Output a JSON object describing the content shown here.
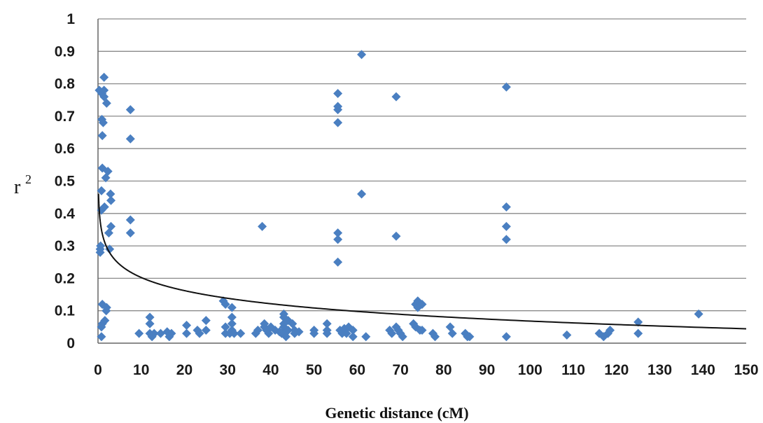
{
  "chart_data": {
    "type": "scatter",
    "xlabel": "Genetic distance (cM)",
    "ylabel": "r",
    "ylabel_sup": "2",
    "xlim": [
      0,
      150
    ],
    "ylim": [
      0,
      1
    ],
    "x_ticks": [
      "0",
      "10",
      "20",
      "30",
      "40",
      "50",
      "60",
      "70",
      "80",
      "90",
      "100",
      "110",
      "120",
      "130",
      "140",
      "150"
    ],
    "y_ticks": [
      "0",
      "0.1",
      "0.2",
      "0.3",
      "0.4",
      "0.5",
      "0.6",
      "0.7",
      "0.8",
      "0.9",
      "1"
    ],
    "grid": "horizontal",
    "marker_color": "#4a7fc1",
    "curve_color": "#111111",
    "points": [
      [
        0.3,
        0.78
      ],
      [
        0.5,
        0.29
      ],
      [
        0.5,
        0.28
      ],
      [
        0.6,
        0.3
      ],
      [
        0.8,
        0.41
      ],
      [
        0.8,
        0.47
      ],
      [
        0.8,
        0.05
      ],
      [
        0.8,
        0.02
      ],
      [
        0.9,
        0.77
      ],
      [
        0.9,
        0.69
      ],
      [
        1.0,
        0.64
      ],
      [
        1.0,
        0.54
      ],
      [
        1.0,
        0.12
      ],
      [
        1.0,
        0.06
      ],
      [
        1.2,
        0.68
      ],
      [
        1.4,
        0.82
      ],
      [
        1.4,
        0.78
      ],
      [
        1.4,
        0.76
      ],
      [
        1.5,
        0.42
      ],
      [
        1.6,
        0.07
      ],
      [
        1.8,
        0.51
      ],
      [
        1.9,
        0.1
      ],
      [
        2.0,
        0.74
      ],
      [
        2.0,
        0.11
      ],
      [
        2.3,
        0.53
      ],
      [
        2.5,
        0.34
      ],
      [
        2.7,
        0.29
      ],
      [
        2.9,
        0.46
      ],
      [
        3.0,
        0.44
      ],
      [
        3.0,
        0.36
      ],
      [
        7.5,
        0.72
      ],
      [
        7.5,
        0.63
      ],
      [
        7.5,
        0.38
      ],
      [
        7.5,
        0.34
      ],
      [
        9.5,
        0.03
      ],
      [
        12.0,
        0.08
      ],
      [
        12.0,
        0.06
      ],
      [
        12.0,
        0.03
      ],
      [
        12.5,
        0.02
      ],
      [
        13.0,
        0.03
      ],
      [
        14.5,
        0.03
      ],
      [
        16.0,
        0.035
      ],
      [
        16.5,
        0.02
      ],
      [
        17.0,
        0.03
      ],
      [
        20.5,
        0.055
      ],
      [
        20.5,
        0.03
      ],
      [
        23.0,
        0.04
      ],
      [
        23.5,
        0.03
      ],
      [
        25.0,
        0.07
      ],
      [
        25.0,
        0.04
      ],
      [
        29.0,
        0.13
      ],
      [
        29.5,
        0.12
      ],
      [
        29.5,
        0.05
      ],
      [
        29.5,
        0.03
      ],
      [
        30.5,
        0.03
      ],
      [
        31.0,
        0.11
      ],
      [
        31.0,
        0.08
      ],
      [
        31.0,
        0.06
      ],
      [
        31.0,
        0.04
      ],
      [
        31.5,
        0.03
      ],
      [
        33.0,
        0.03
      ],
      [
        36.5,
        0.03
      ],
      [
        37.0,
        0.04
      ],
      [
        38.0,
        0.36
      ],
      [
        38.5,
        0.06
      ],
      [
        38.5,
        0.05
      ],
      [
        39.0,
        0.04
      ],
      [
        39.5,
        0.03
      ],
      [
        40.0,
        0.05
      ],
      [
        41.0,
        0.04
      ],
      [
        42.0,
        0.035
      ],
      [
        42.5,
        0.03
      ],
      [
        43.0,
        0.09
      ],
      [
        43.0,
        0.08
      ],
      [
        43.0,
        0.06
      ],
      [
        43.0,
        0.05
      ],
      [
        43.0,
        0.03
      ],
      [
        43.5,
        0.02
      ],
      [
        44.0,
        0.07
      ],
      [
        44.0,
        0.04
      ],
      [
        45.0,
        0.06
      ],
      [
        45.5,
        0.04
      ],
      [
        45.5,
        0.03
      ],
      [
        46.5,
        0.035
      ],
      [
        50.0,
        0.04
      ],
      [
        50.0,
        0.03
      ],
      [
        53.0,
        0.06
      ],
      [
        53.0,
        0.04
      ],
      [
        53.0,
        0.03
      ],
      [
        55.5,
        0.77
      ],
      [
        55.5,
        0.73
      ],
      [
        55.5,
        0.72
      ],
      [
        55.5,
        0.68
      ],
      [
        55.5,
        0.34
      ],
      [
        55.5,
        0.32
      ],
      [
        55.5,
        0.25
      ],
      [
        56.0,
        0.04
      ],
      [
        56.5,
        0.03
      ],
      [
        57.0,
        0.045
      ],
      [
        57.5,
        0.03
      ],
      [
        58.0,
        0.05
      ],
      [
        59.0,
        0.04
      ],
      [
        59.0,
        0.02
      ],
      [
        61.0,
        0.89
      ],
      [
        61.0,
        0.46
      ],
      [
        62.0,
        0.02
      ],
      [
        67.5,
        0.04
      ],
      [
        68.0,
        0.03
      ],
      [
        69.0,
        0.76
      ],
      [
        69.0,
        0.33
      ],
      [
        69.0,
        0.05
      ],
      [
        69.5,
        0.04
      ],
      [
        70.0,
        0.03
      ],
      [
        70.5,
        0.02
      ],
      [
        73.0,
        0.06
      ],
      [
        73.5,
        0.12
      ],
      [
        73.5,
        0.05
      ],
      [
        74.0,
        0.13
      ],
      [
        74.0,
        0.11
      ],
      [
        74.5,
        0.04
      ],
      [
        75.0,
        0.12
      ],
      [
        75.0,
        0.04
      ],
      [
        77.5,
        0.03
      ],
      [
        78.0,
        0.02
      ],
      [
        81.5,
        0.05
      ],
      [
        82.0,
        0.03
      ],
      [
        85.0,
        0.03
      ],
      [
        85.5,
        0.02
      ],
      [
        86.0,
        0.02
      ],
      [
        94.5,
        0.79
      ],
      [
        94.5,
        0.42
      ],
      [
        94.5,
        0.36
      ],
      [
        94.5,
        0.32
      ],
      [
        94.5,
        0.02
      ],
      [
        108.5,
        0.025
      ],
      [
        116.0,
        0.03
      ],
      [
        117.0,
        0.02
      ],
      [
        118.0,
        0.03
      ],
      [
        118.5,
        0.04
      ],
      [
        125.0,
        0.065
      ],
      [
        125.0,
        0.03
      ],
      [
        139.0,
        0.09
      ]
    ]
  }
}
